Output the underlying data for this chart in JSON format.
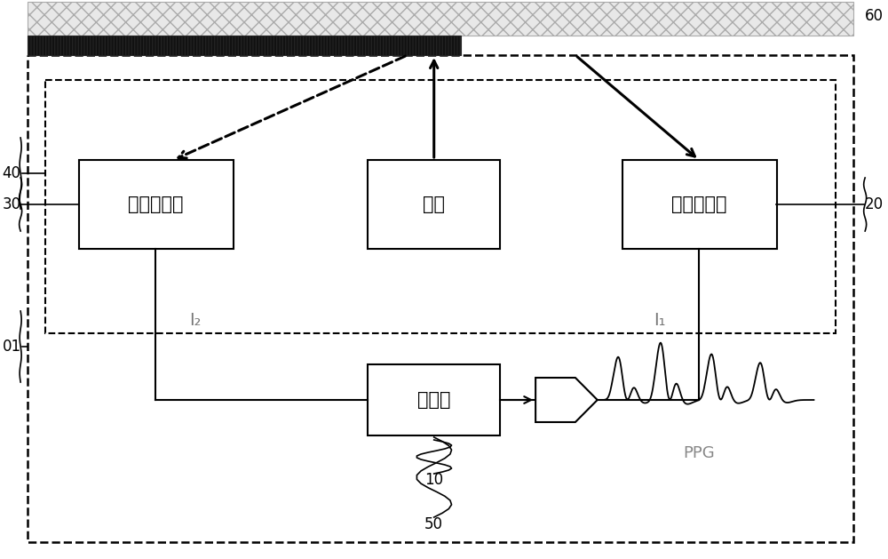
{
  "bg_color": "#ffffff",
  "label_60": "60",
  "label_40": "40",
  "label_30": "30",
  "label_20": "20",
  "label_10": "10",
  "label_01": "01",
  "label_50": "50",
  "text_guangyuan": "光源",
  "text_diyi": "第一接收器",
  "text_dier": "第二接收器",
  "text_chuli": "处理器",
  "text_PPG": "PPG",
  "text_I1": "I₁",
  "text_I2": "I₂",
  "font_size_box": 13,
  "font_size_label": 12,
  "font_size_subscript": 11
}
